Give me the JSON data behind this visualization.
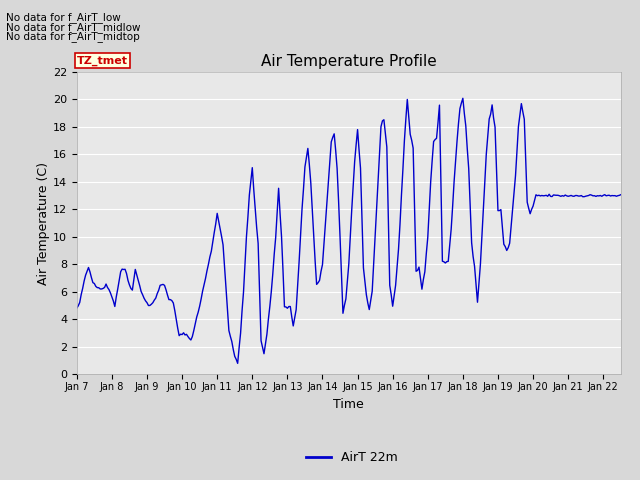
{
  "title": "Air Temperature Profile",
  "xlabel": "Time",
  "ylabel": "Air Temperature (C)",
  "legend_label": "AirT 22m",
  "line_color": "#0000CC",
  "bg_color": "#E8E8E8",
  "ylim": [
    0,
    22
  ],
  "yticks": [
    0,
    2,
    4,
    6,
    8,
    10,
    12,
    14,
    16,
    18,
    20,
    22
  ],
  "annotations": [
    "No data for f_AirT_low",
    "No data for f_AirT_midlow",
    "No data for f_AirT_midtop"
  ],
  "tz_label": "TZ_tmet",
  "xticklabels": [
    "Jan 7",
    "Jan 8",
    "Jan 9",
    "Jan 10",
    "Jan 11",
    "Jan 12",
    "Jan 13",
    "Jan 14",
    "Jan 15",
    "Jan 16",
    "Jan 17",
    "Jan 18",
    "Jan 19",
    "Jan 20",
    "Jan 21",
    "Jan 22"
  ],
  "figsize": [
    6.4,
    4.8
  ],
  "dpi": 100
}
